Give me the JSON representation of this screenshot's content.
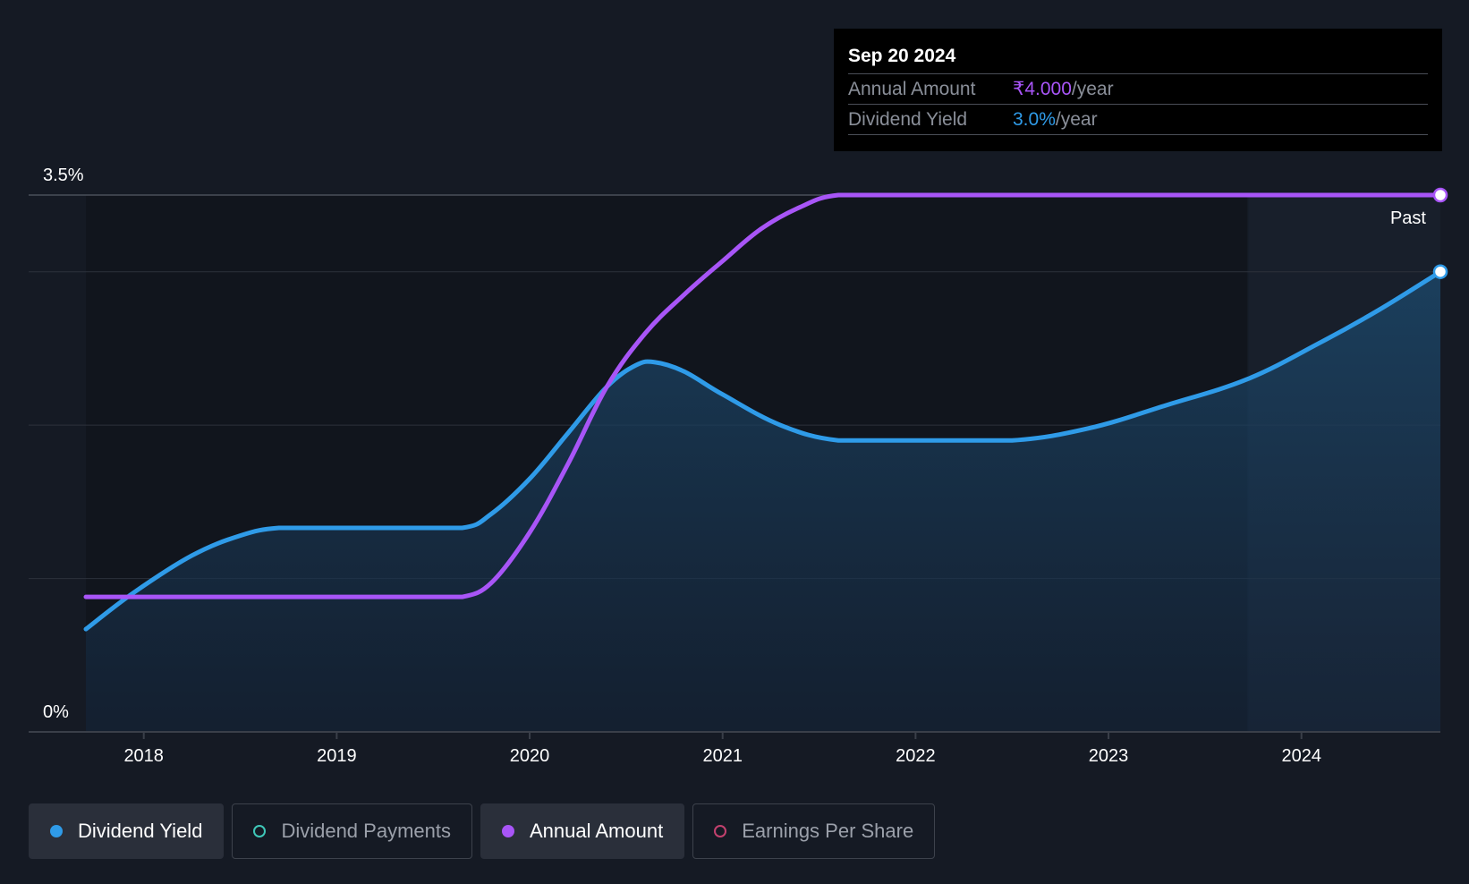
{
  "tooltip": {
    "date": "Sep 20 2024",
    "rows": [
      {
        "label": "Annual Amount",
        "value": "₹4.000",
        "unit": "/year"
      },
      {
        "label": "Dividend Yield",
        "value": "3.0%",
        "unit": "/year"
      }
    ]
  },
  "past_label": "Past",
  "legend": [
    {
      "label": "Dividend Yield",
      "color": "#2f9be8",
      "active": true,
      "filled": true
    },
    {
      "label": "Dividend Payments",
      "color": "#3fc7b8",
      "active": false,
      "filled": false
    },
    {
      "label": "Annual Amount",
      "color": "#a855f7",
      "active": true,
      "filled": true
    },
    {
      "label": "Earnings Per Share",
      "color": "#c2416e",
      "active": false,
      "filled": false
    }
  ],
  "chart_data": {
    "type": "line",
    "y_tick_labels": [
      "3.5%",
      "0%"
    ],
    "ylim": [
      0,
      3.5
    ],
    "x_tick_labels": [
      "2018",
      "2019",
      "2020",
      "2021",
      "2022",
      "2023",
      "2024"
    ],
    "xlim": [
      2017.7,
      2024.72
    ],
    "past_region_start": 2023.72,
    "grid": true,
    "series": [
      {
        "name": "Dividend Yield",
        "color": "#2f9be8",
        "x": [
          2017.7,
          2017.95,
          2018.25,
          2018.5,
          2018.7,
          2019.0,
          2019.3,
          2019.65,
          2019.8,
          2020.0,
          2020.2,
          2020.4,
          2020.55,
          2020.65,
          2020.8,
          2021.0,
          2021.3,
          2021.6,
          2022.0,
          2022.5,
          2022.9,
          2023.3,
          2023.72,
          2024.1,
          2024.4,
          2024.72
        ],
        "y": [
          0.67,
          0.91,
          1.15,
          1.28,
          1.33,
          1.33,
          1.33,
          1.33,
          1.42,
          1.65,
          1.95,
          2.25,
          2.39,
          2.41,
          2.35,
          2.2,
          2.0,
          1.9,
          1.9,
          1.9,
          1.98,
          2.13,
          2.3,
          2.54,
          2.75,
          3.0
        ]
      },
      {
        "name": "Annual Amount",
        "color": "#a855f7",
        "x": [
          2017.7,
          2018.0,
          2018.5,
          2019.0,
          2019.5,
          2019.65,
          2019.8,
          2020.0,
          2020.2,
          2020.4,
          2020.6,
          2020.8,
          2021.0,
          2021.2,
          2021.4,
          2021.6,
          2022.0,
          2023.0,
          2024.0,
          2024.72
        ],
        "y": [
          0.88,
          0.88,
          0.88,
          0.88,
          0.88,
          0.88,
          0.97,
          1.3,
          1.75,
          2.25,
          2.6,
          2.85,
          3.07,
          3.28,
          3.42,
          3.5,
          3.5,
          3.5,
          3.5,
          3.5
        ]
      }
    ]
  }
}
